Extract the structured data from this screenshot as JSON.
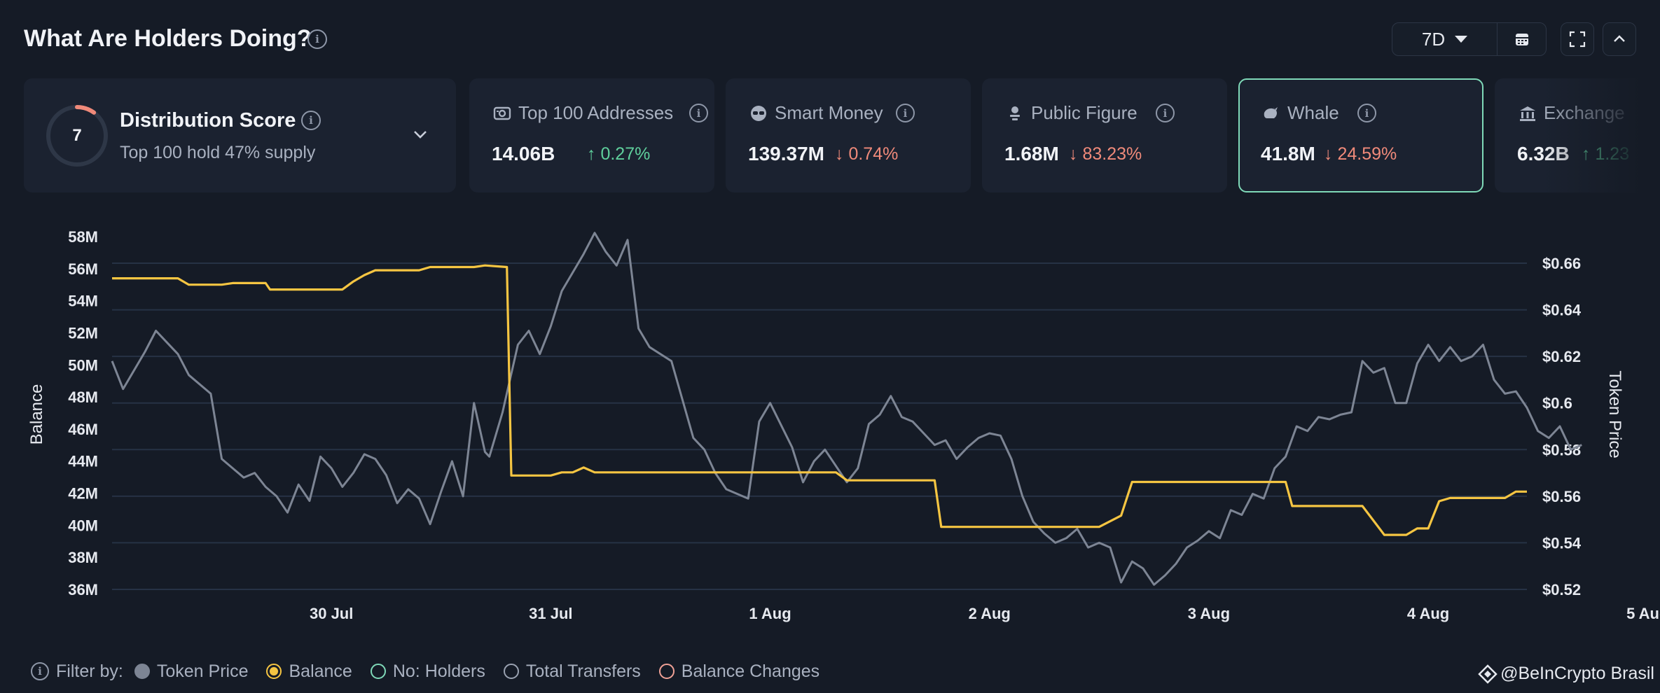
{
  "header": {
    "title": "What Are Holders Doing?",
    "range": "7D",
    "icons": [
      "info-icon",
      "calendar-icon",
      "expand-icon",
      "chevron-up-icon"
    ]
  },
  "score_card": {
    "score": "7",
    "score_fraction": 0.1,
    "title": "Distribution Score",
    "subtitle": "Top 100 hold 47% supply"
  },
  "metrics": [
    {
      "icon": "database-icon",
      "label": "Top 100 Addresses",
      "value": "14.06B",
      "arrow": "↑",
      "change": "0.27%",
      "direction": "up"
    },
    {
      "icon": "glasses-icon",
      "label": "Smart Money",
      "value": "139.37M",
      "arrow": "↓",
      "change": "0.74%",
      "direction": "down"
    },
    {
      "icon": "person-icon",
      "label": "Public Figure",
      "value": "1.68M",
      "arrow": "↓",
      "change": "83.23%",
      "direction": "down"
    },
    {
      "icon": "whale-icon",
      "label": "Whale",
      "value": "41.8M",
      "arrow": "↓",
      "change": "24.59%",
      "direction": "down"
    },
    {
      "icon": "bank-icon",
      "label": "Exchange",
      "value": "6.32B",
      "arrow": "↑",
      "change": "1.23",
      "direction": "up"
    }
  ],
  "colors": {
    "balance": "#f5c542",
    "price": "#7d8594",
    "grid": "#263245",
    "active": "#7fd9b8"
  },
  "chart_data": {
    "type": "line",
    "ylabel_left": "Balance",
    "ylabel_right": "Token Price",
    "y_left_ticks": [
      "58M",
      "56M",
      "54M",
      "52M",
      "50M",
      "48M",
      "46M",
      "44M",
      "42M",
      "40M",
      "38M",
      "36M"
    ],
    "y_right_ticks": [
      "$0.66",
      "$0.64",
      "$0.62",
      "$0.6",
      "$0.58",
      "$0.56",
      "$0.54",
      "$0.52"
    ],
    "x_ticks": [
      "30 Jul",
      "31 Jul",
      "1 Aug",
      "2 Aug",
      "3 Aug",
      "4 Aug",
      "5 Aug"
    ],
    "x_range_days": [
      29.0,
      35.45
    ],
    "y_left_range_m": [
      36,
      58
    ],
    "y_right_range": [
      0.52,
      0.66
    ],
    "series": [
      {
        "name": "Balance",
        "axis": "left",
        "unit": "M",
        "points": [
          [
            29.0,
            55.4
          ],
          [
            29.3,
            55.4
          ],
          [
            29.35,
            55.0
          ],
          [
            29.5,
            55.0
          ],
          [
            29.55,
            55.1
          ],
          [
            29.7,
            55.1
          ],
          [
            29.72,
            54.7
          ],
          [
            30.05,
            54.7
          ],
          [
            30.1,
            55.2
          ],
          [
            30.15,
            55.6
          ],
          [
            30.2,
            55.9
          ],
          [
            30.4,
            55.9
          ],
          [
            30.45,
            56.1
          ],
          [
            30.65,
            56.1
          ],
          [
            30.7,
            56.2
          ],
          [
            30.8,
            56.1
          ],
          [
            30.82,
            43.1
          ],
          [
            31.0,
            43.1
          ],
          [
            31.05,
            43.3
          ],
          [
            31.1,
            43.3
          ],
          [
            31.15,
            43.6
          ],
          [
            31.2,
            43.3
          ],
          [
            31.5,
            43.3
          ],
          [
            31.95,
            43.3
          ],
          [
            32.3,
            43.3
          ],
          [
            32.35,
            42.8
          ],
          [
            32.75,
            42.8
          ],
          [
            32.78,
            39.9
          ],
          [
            33.0,
            39.9
          ],
          [
            33.5,
            39.9
          ],
          [
            33.6,
            40.6
          ],
          [
            33.65,
            42.7
          ],
          [
            34.0,
            42.7
          ],
          [
            34.35,
            42.7
          ],
          [
            34.38,
            41.2
          ],
          [
            34.7,
            41.2
          ],
          [
            34.8,
            39.4
          ],
          [
            34.9,
            39.4
          ],
          [
            34.95,
            39.8
          ],
          [
            35.0,
            39.8
          ],
          [
            35.05,
            41.5
          ],
          [
            35.1,
            41.7
          ],
          [
            35.35,
            41.7
          ],
          [
            35.4,
            42.1
          ],
          [
            35.45,
            42.1
          ]
        ]
      },
      {
        "name": "Token Price",
        "axis": "right",
        "unit": "$",
        "points": [
          [
            29.0,
            0.618
          ],
          [
            29.05,
            0.606
          ],
          [
            29.15,
            0.622
          ],
          [
            29.2,
            0.631
          ],
          [
            29.25,
            0.626
          ],
          [
            29.3,
            0.621
          ],
          [
            29.35,
            0.612
          ],
          [
            29.45,
            0.604
          ],
          [
            29.5,
            0.576
          ],
          [
            29.55,
            0.572
          ],
          [
            29.6,
            0.568
          ],
          [
            29.65,
            0.57
          ],
          [
            29.7,
            0.564
          ],
          [
            29.75,
            0.56
          ],
          [
            29.8,
            0.553
          ],
          [
            29.85,
            0.565
          ],
          [
            29.9,
            0.558
          ],
          [
            29.95,
            0.577
          ],
          [
            30.0,
            0.572
          ],
          [
            30.05,
            0.564
          ],
          [
            30.1,
            0.57
          ],
          [
            30.15,
            0.578
          ],
          [
            30.2,
            0.576
          ],
          [
            30.25,
            0.569
          ],
          [
            30.3,
            0.557
          ],
          [
            30.35,
            0.563
          ],
          [
            30.4,
            0.559
          ],
          [
            30.45,
            0.548
          ],
          [
            30.5,
            0.562
          ],
          [
            30.55,
            0.575
          ],
          [
            30.6,
            0.56
          ],
          [
            30.65,
            0.6
          ],
          [
            30.7,
            0.579
          ],
          [
            30.72,
            0.577
          ],
          [
            30.78,
            0.596
          ],
          [
            30.85,
            0.625
          ],
          [
            30.9,
            0.631
          ],
          [
            30.95,
            0.621
          ],
          [
            31.0,
            0.633
          ],
          [
            31.05,
            0.648
          ],
          [
            31.1,
            0.656
          ],
          [
            31.15,
            0.664
          ],
          [
            31.2,
            0.673
          ],
          [
            31.25,
            0.665
          ],
          [
            31.3,
            0.659
          ],
          [
            31.35,
            0.67
          ],
          [
            31.4,
            0.632
          ],
          [
            31.45,
            0.624
          ],
          [
            31.55,
            0.618
          ],
          [
            31.65,
            0.585
          ],
          [
            31.7,
            0.58
          ],
          [
            31.75,
            0.57
          ],
          [
            31.8,
            0.563
          ],
          [
            31.9,
            0.559
          ],
          [
            31.95,
            0.592
          ],
          [
            32.0,
            0.6
          ],
          [
            32.1,
            0.581
          ],
          [
            32.15,
            0.566
          ],
          [
            32.2,
            0.575
          ],
          [
            32.25,
            0.58
          ],
          [
            32.35,
            0.566
          ],
          [
            32.4,
            0.572
          ],
          [
            32.45,
            0.591
          ],
          [
            32.5,
            0.595
          ],
          [
            32.55,
            0.603
          ],
          [
            32.6,
            0.594
          ],
          [
            32.65,
            0.592
          ],
          [
            32.7,
            0.587
          ],
          [
            32.75,
            0.582
          ],
          [
            32.8,
            0.584
          ],
          [
            32.85,
            0.576
          ],
          [
            32.9,
            0.581
          ],
          [
            32.95,
            0.585
          ],
          [
            33.0,
            0.587
          ],
          [
            33.05,
            0.586
          ],
          [
            33.1,
            0.576
          ],
          [
            33.15,
            0.56
          ],
          [
            33.2,
            0.549
          ],
          [
            33.25,
            0.544
          ],
          [
            33.3,
            0.54
          ],
          [
            33.35,
            0.542
          ],
          [
            33.4,
            0.546
          ],
          [
            33.45,
            0.538
          ],
          [
            33.5,
            0.54
          ],
          [
            33.55,
            0.538
          ],
          [
            33.6,
            0.523
          ],
          [
            33.65,
            0.532
          ],
          [
            33.7,
            0.529
          ],
          [
            33.75,
            0.522
          ],
          [
            33.8,
            0.526
          ],
          [
            33.85,
            0.531
          ],
          [
            33.9,
            0.538
          ],
          [
            33.95,
            0.541
          ],
          [
            34.0,
            0.545
          ],
          [
            34.05,
            0.542
          ],
          [
            34.1,
            0.554
          ],
          [
            34.15,
            0.552
          ],
          [
            34.2,
            0.561
          ],
          [
            34.25,
            0.559
          ],
          [
            34.3,
            0.572
          ],
          [
            34.35,
            0.577
          ],
          [
            34.4,
            0.59
          ],
          [
            34.45,
            0.588
          ],
          [
            34.5,
            0.594
          ],
          [
            34.55,
            0.593
          ],
          [
            34.6,
            0.595
          ],
          [
            34.65,
            0.596
          ],
          [
            34.7,
            0.618
          ],
          [
            34.75,
            0.613
          ],
          [
            34.8,
            0.615
          ],
          [
            34.85,
            0.6
          ],
          [
            34.9,
            0.6
          ],
          [
            34.95,
            0.617
          ],
          [
            35.0,
            0.625
          ],
          [
            35.05,
            0.618
          ],
          [
            35.1,
            0.624
          ],
          [
            35.15,
            0.618
          ],
          [
            35.2,
            0.62
          ],
          [
            35.25,
            0.625
          ],
          [
            35.3,
            0.61
          ],
          [
            35.35,
            0.604
          ],
          [
            35.4,
            0.605
          ],
          [
            35.45,
            0.598
          ],
          [
            35.5,
            0.588
          ],
          [
            35.55,
            0.585
          ],
          [
            35.6,
            0.59
          ],
          [
            35.65,
            0.58
          ],
          [
            35.7,
            0.582
          ]
        ]
      }
    ],
    "grid": true,
    "legend": {
      "label": "Filter by:",
      "items": [
        "Token Price",
        "Balance",
        "No: Holders",
        "Total Transfers",
        "Balance Changes"
      ]
    }
  },
  "watermark": {
    "text": "@BeInCrypto Brasil"
  }
}
